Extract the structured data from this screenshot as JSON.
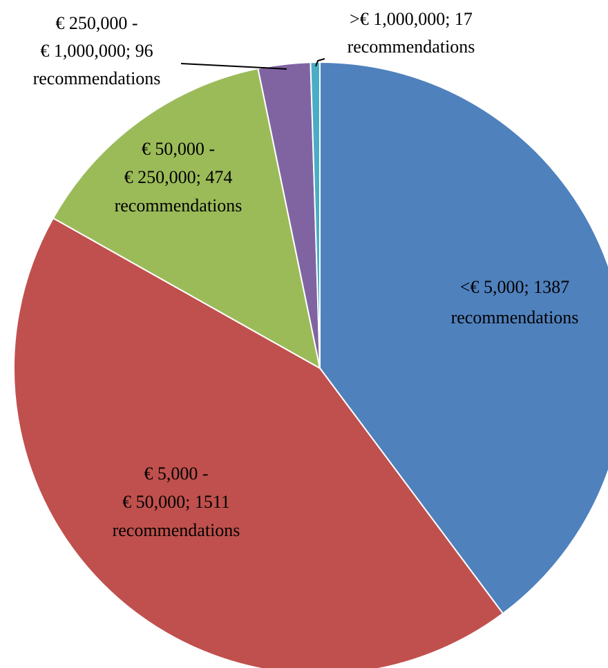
{
  "chart_data": {
    "type": "pie",
    "values": [
      1387,
      1511,
      474,
      96,
      17
    ],
    "value_labels": [
      [
        "<€ 5,000; 1387",
        "recommendations"
      ],
      [
        "€ 5,000 -",
        "€ 50,000; 1511",
        "recommendations"
      ],
      [
        "€ 50,000 -",
        "€ 250,000; 474",
        "recommendations"
      ],
      [
        "€ 250,000 -",
        "€ 1,000,000; 96",
        "recommendations"
      ],
      [
        ">€ 1,000,000; 17",
        "recommendations"
      ]
    ],
    "colors": [
      "#4f81bd",
      "#c0504d",
      "#9bbb59",
      "#8064a2",
      "#4bacc6"
    ]
  }
}
